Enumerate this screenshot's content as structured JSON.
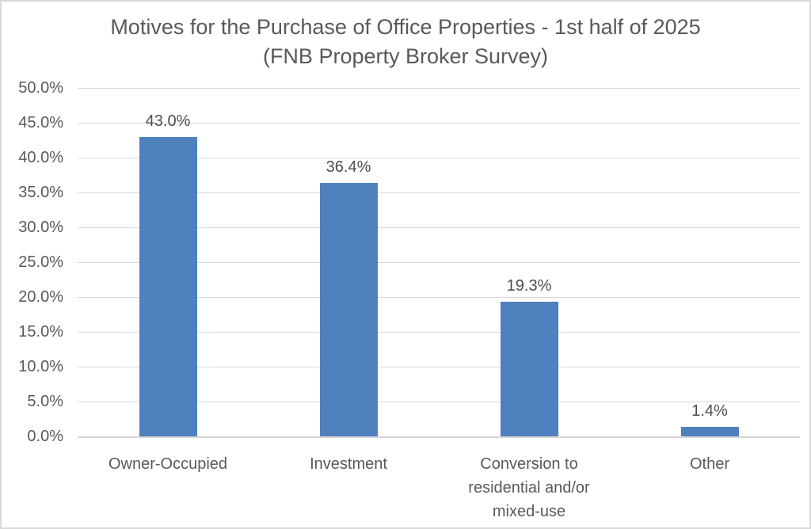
{
  "chart_data": {
    "type": "bar",
    "title": "Motives for the Purchase of Office Properties - 1st half of 2025 (FNB Property Broker Survey)",
    "title_lines": [
      "Motives for the Purchase of Office Properties - 1st half of 2025",
      "(FNB Property Broker Survey)"
    ],
    "categories": [
      "Owner-Occupied",
      "Investment",
      "Conversion to residential and/or mixed-use",
      "Other"
    ],
    "values": [
      43.0,
      36.4,
      19.3,
      1.4
    ],
    "value_labels": [
      "43.0%",
      "36.4%",
      "19.3%",
      "1.4%"
    ],
    "y_ticks": [
      "0.0%",
      "5.0%",
      "10.0%",
      "15.0%",
      "20.0%",
      "25.0%",
      "30.0%",
      "35.0%",
      "40.0%",
      "45.0%",
      "50.0%"
    ],
    "ylim": [
      0,
      50
    ],
    "xlabel": "",
    "ylabel": "",
    "grid": true,
    "legend": "none",
    "colors": {
      "bar": "#4e81bd",
      "gridline": "#d9d9d9",
      "axis_line": "#d6d6d6",
      "tick_text": "#595959",
      "title_text": "#595959",
      "data_label_text": "#4d4d4d",
      "background": "#ffffff",
      "frame_border": "#d9d9d9"
    }
  }
}
